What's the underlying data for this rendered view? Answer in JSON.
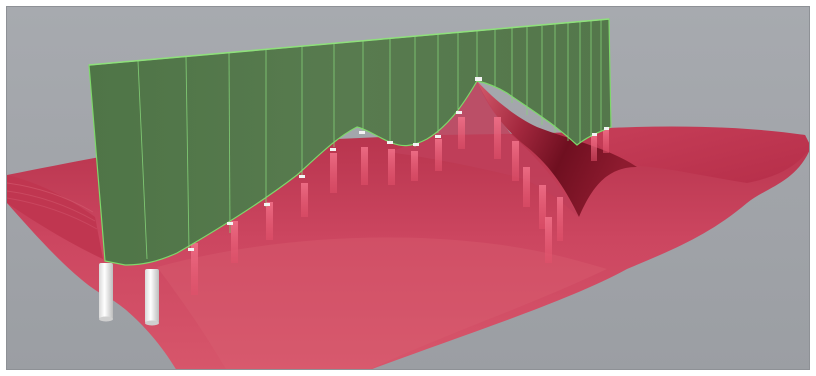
{
  "viewport": {
    "title": "",
    "background_color": "#a1a4a9",
    "frame_color": "#ffffff"
  },
  "scene": {
    "objects": [
      {
        "name": "membrane-surface",
        "color": "#c43a54",
        "highlight": "#d65b6e",
        "shadow": "#7f1525"
      },
      {
        "name": "vertical-wall",
        "color": "#597c50",
        "edge": "#7ed86a"
      },
      {
        "name": "support-posts",
        "color": "#f4f4f4"
      },
      {
        "name": "membrane-struts",
        "color": "#e9506b"
      }
    ]
  }
}
